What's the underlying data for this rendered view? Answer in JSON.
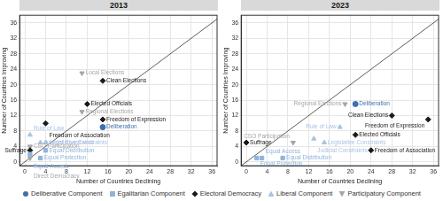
{
  "chart_data": [
    {
      "type": "scatter",
      "title": "2013",
      "x_label": "Number of Countries Declining",
      "y_label": "Number of Countries Improving",
      "xlim": [
        -1,
        37
      ],
      "ylim": [
        -1,
        38
      ],
      "xticks": [
        0,
        4,
        8,
        12,
        16,
        20,
        24,
        28,
        32,
        36
      ],
      "yticks": [
        0,
        4,
        8,
        12,
        16,
        20,
        24,
        28,
        32,
        36
      ],
      "grid": true,
      "legend": "bottom",
      "series": [
        {
          "name": "Deliberative Component",
          "color": "#3f6fae",
          "marker": "circle",
          "x": [
            15
          ],
          "y": [
            9
          ],
          "point_labels": [
            "Deliberation"
          ]
        },
        {
          "name": "Egalitarian Component",
          "color": "#8fb3dc",
          "marker": "square",
          "x": [
            1,
            4,
            3
          ],
          "y": [
            2,
            3,
            1
          ],
          "point_labels": [
            "Equal Access",
            "Equal Distribution",
            "Equal Protection"
          ]
        },
        {
          "name": "Electoral Democracy",
          "color": "#1a1a1a",
          "marker": "diamond",
          "x": [
            15,
            12,
            15,
            4,
            1
          ],
          "y": [
            21,
            15,
            11,
            10,
            3
          ],
          "point_labels": [
            "Clean Elections",
            "Elected Officials",
            "Freedom of Expression",
            "Freedom of Association",
            "Suffrage"
          ]
        },
        {
          "name": "Liberal Component",
          "color": "#a9c3e3",
          "marker": "triangle",
          "x": [
            1,
            3,
            4
          ],
          "y": [
            7,
            5,
            5
          ],
          "point_labels": [
            "Rule of Law",
            "Judicial Constraints",
            "Legislative Constraints"
          ]
        },
        {
          "name": "Participatory Component",
          "color": "#a6a6a6",
          "marker": "triangle-down",
          "x": [
            11,
            11,
            1,
            1
          ],
          "y": [
            23,
            13,
            4,
            1
          ],
          "point_labels": [
            "Local Elections",
            "Regional Elections",
            "CSO Participation",
            "Direct Democracy"
          ]
        }
      ]
    },
    {
      "type": "scatter",
      "title": "2023",
      "x_label": "Number of Countries Declining",
      "y_label": "Number of Countries Improving",
      "xlim": [
        -1,
        37
      ],
      "ylim": [
        -1,
        38
      ],
      "xticks": [
        0,
        4,
        8,
        12,
        16,
        20,
        24,
        28,
        32,
        36
      ],
      "yticks": [
        0,
        4,
        8,
        12,
        16,
        20,
        24,
        28,
        32,
        36
      ],
      "grid": true,
      "legend": "bottom",
      "series": [
        {
          "name": "Deliberative Component",
          "color": "#3f6fae",
          "marker": "circle",
          "x": [
            21
          ],
          "y": [
            15
          ],
          "point_labels": [
            "Deliberation"
          ]
        },
        {
          "name": "Egalitarian Component",
          "color": "#8fb3dc",
          "marker": "square",
          "x": [
            3,
            7,
            2
          ],
          "y": [
            1,
            1,
            1
          ],
          "point_labels": [
            "Equal Access",
            "Equal Distribution",
            "Equal Protection"
          ]
        },
        {
          "name": "Electoral Democracy",
          "color": "#1a1a1a",
          "marker": "diamond",
          "x": [
            28,
            21,
            35,
            24,
            0
          ],
          "y": [
            12,
            7,
            11,
            3,
            5
          ],
          "point_labels": [
            "Clean Elections",
            "Elected Officials",
            "Freedom of Expression",
            "Freedom of Association",
            "Suffrage"
          ]
        },
        {
          "name": "Liberal Component",
          "color": "#a9c3e3",
          "marker": "triangle",
          "x": [
            18,
            13,
            15
          ],
          "y": [
            9,
            6,
            5
          ],
          "point_labels": [
            "Rule of Law",
            "Judicial Constraints",
            "Legislative Constraints"
          ]
        },
        {
          "name": "Participatory Component",
          "color": "#a6a6a6",
          "marker": "triangle-down",
          "x": [
            19,
            9
          ],
          "y": [
            15,
            5
          ],
          "point_labels": [
            "Regional Elections",
            "CSO Participation"
          ]
        }
      ]
    }
  ]
}
